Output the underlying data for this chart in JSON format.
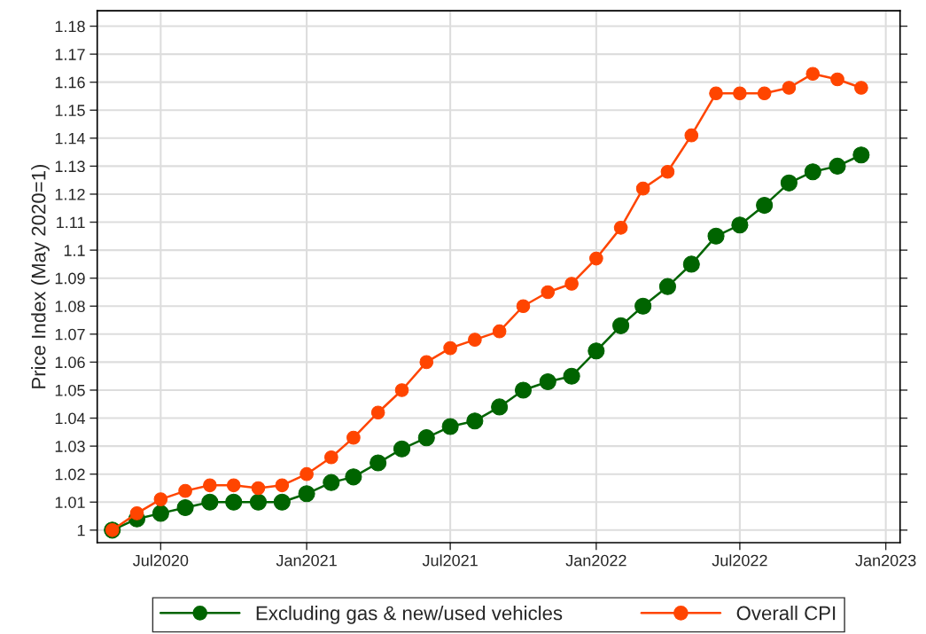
{
  "chart_data": {
    "type": "line",
    "ylabel": "Price Index (May 2020=1)",
    "x": [
      "2020-05",
      "2020-06",
      "2020-07",
      "2020-08",
      "2020-09",
      "2020-10",
      "2020-11",
      "2020-12",
      "2021-01",
      "2021-02",
      "2021-03",
      "2021-04",
      "2021-05",
      "2021-06",
      "2021-07",
      "2021-08",
      "2021-09",
      "2021-10",
      "2021-11",
      "2021-12",
      "2022-01",
      "2022-02",
      "2022-03",
      "2022-04",
      "2022-05",
      "2022-06",
      "2022-07",
      "2022-08",
      "2022-09",
      "2022-10",
      "2022-11",
      "2022-12"
    ],
    "series": [
      {
        "name": "Excluding gas & new/used vehicles",
        "color": "#006400",
        "values": [
          1.0,
          1.004,
          1.006,
          1.008,
          1.01,
          1.01,
          1.01,
          1.01,
          1.013,
          1.017,
          1.019,
          1.024,
          1.029,
          1.033,
          1.037,
          1.039,
          1.044,
          1.05,
          1.053,
          1.055,
          1.064,
          1.073,
          1.08,
          1.087,
          1.095,
          1.105,
          1.109,
          1.116,
          1.124,
          1.128,
          1.13,
          1.134
        ]
      },
      {
        "name": "Overall CPI",
        "color": "#ff4500",
        "values": [
          1.0,
          1.006,
          1.011,
          1.014,
          1.016,
          1.016,
          1.015,
          1.016,
          1.02,
          1.026,
          1.033,
          1.042,
          1.05,
          1.06,
          1.065,
          1.068,
          1.071,
          1.08,
          1.085,
          1.088,
          1.097,
          1.108,
          1.122,
          1.128,
          1.141,
          1.156,
          1.156,
          1.156,
          1.158,
          1.163,
          1.161,
          1.158
        ]
      }
    ],
    "xlim": [
      "2020-04-12",
      "2023-01-19"
    ],
    "xticks": [
      {
        "value": "2020-07",
        "label": "Jul2020"
      },
      {
        "value": "2021-01",
        "label": "Jan2021"
      },
      {
        "value": "2021-07",
        "label": "Jul2021"
      },
      {
        "value": "2022-01",
        "label": "Jan2022"
      },
      {
        "value": "2022-07",
        "label": "Jul2022"
      },
      {
        "value": "2023-01",
        "label": "Jan2023"
      }
    ],
    "ylim": [
      0.9955,
      1.1855
    ],
    "yticks": [
      1,
      1.01,
      1.02,
      1.03,
      1.04,
      1.05,
      1.06,
      1.07,
      1.08,
      1.09,
      1.1,
      1.11,
      1.12,
      1.13,
      1.14,
      1.15,
      1.16,
      1.17,
      1.18
    ],
    "grid": true,
    "legend": "bottom",
    "marker": "circle",
    "line_style": "solid"
  }
}
